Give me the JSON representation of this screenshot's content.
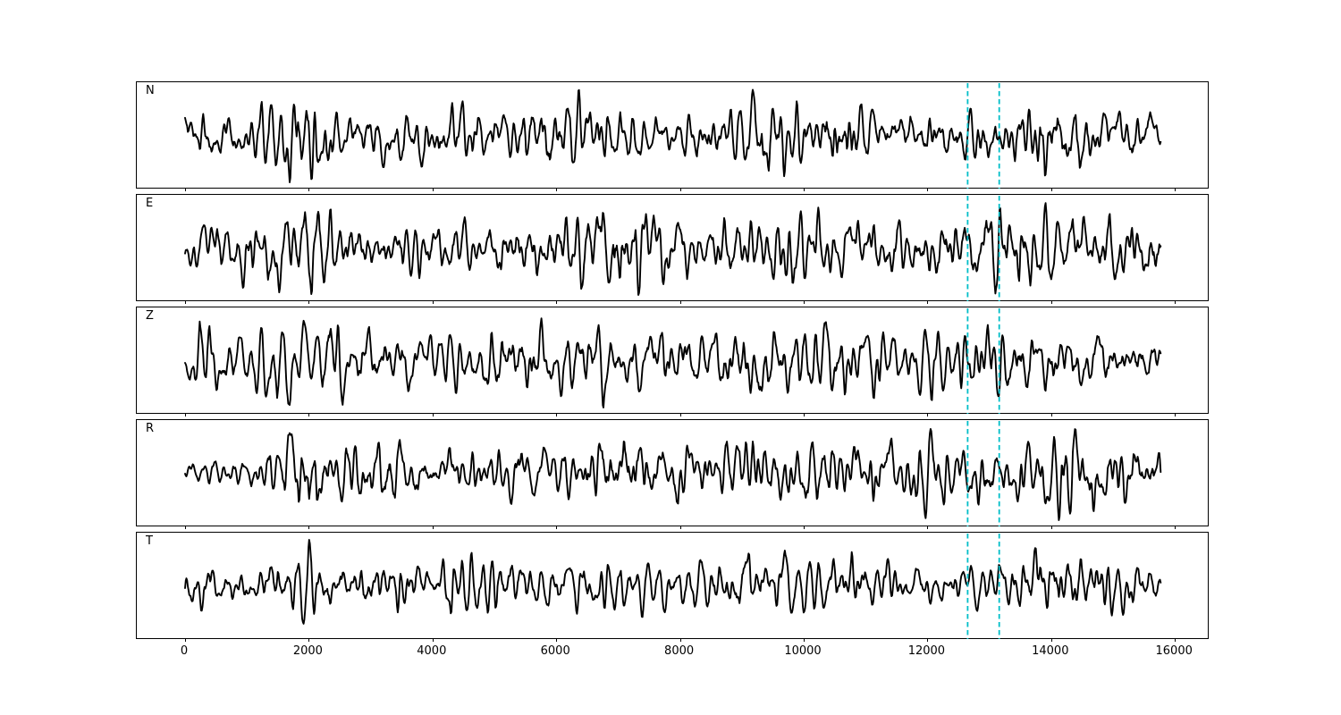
{
  "figure": {
    "background": "#ffffff",
    "trace_color": "#000000",
    "spine_color": "#000000"
  },
  "chart_data": {
    "type": "line",
    "title": "",
    "description": "Five stacked seismogram component traces (N, E, Z, R, T) with two dashed vertical pick lines",
    "xlim": [
      -780,
      16560
    ],
    "x_range_samples": [
      0,
      15770
    ],
    "x_ticks": [
      0,
      2000,
      4000,
      6000,
      8000,
      10000,
      12000,
      14000,
      16000
    ],
    "grid": false,
    "legend_position": "none",
    "trace_color": "#000000",
    "vline_color": "#00bec8",
    "vline_style": "dashed",
    "vlines_x": [
      12650,
      13160
    ],
    "traces": [
      {
        "label": "N",
        "seed": 101,
        "envelope": [
          [
            0,
            0.55
          ],
          [
            900,
            0.5
          ],
          [
            1950,
            1.0
          ],
          [
            2600,
            0.5
          ],
          [
            3600,
            0.55
          ],
          [
            4400,
            0.7
          ],
          [
            5200,
            0.5
          ],
          [
            6100,
            0.85
          ],
          [
            6800,
            0.55
          ],
          [
            7800,
            0.45
          ],
          [
            8800,
            0.55
          ],
          [
            9400,
            1.0
          ],
          [
            10000,
            0.65
          ],
          [
            10450,
            0.85
          ],
          [
            11200,
            0.55
          ],
          [
            12300,
            0.5
          ],
          [
            12900,
            0.65
          ],
          [
            13400,
            0.6
          ],
          [
            14000,
            1.0
          ],
          [
            14600,
            0.7
          ],
          [
            15200,
            0.6
          ],
          [
            15770,
            0.45
          ]
        ]
      },
      {
        "label": "E",
        "seed": 202,
        "envelope": [
          [
            0,
            0.45
          ],
          [
            1100,
            0.5
          ],
          [
            2100,
            0.75
          ],
          [
            2700,
            0.5
          ],
          [
            3800,
            0.55
          ],
          [
            4800,
            0.5
          ],
          [
            6000,
            0.55
          ],
          [
            7050,
            1.0
          ],
          [
            7500,
            0.7
          ],
          [
            8300,
            0.5
          ],
          [
            9300,
            0.55
          ],
          [
            9900,
            0.6
          ],
          [
            10800,
            0.55
          ],
          [
            11800,
            0.55
          ],
          [
            12600,
            0.6
          ],
          [
            13200,
            0.85
          ],
          [
            13900,
            0.7
          ],
          [
            14600,
            0.75
          ],
          [
            15200,
            0.65
          ],
          [
            15770,
            0.6
          ]
        ]
      },
      {
        "label": "Z",
        "seed": 303,
        "envelope": [
          [
            0,
            1.0
          ],
          [
            500,
            0.8
          ],
          [
            1100,
            0.72
          ],
          [
            1900,
            0.95
          ],
          [
            2700,
            0.8
          ],
          [
            3500,
            0.9
          ],
          [
            4300,
            0.68
          ],
          [
            5100,
            0.75
          ],
          [
            6000,
            0.95
          ],
          [
            6900,
            0.72
          ],
          [
            7600,
            0.85
          ],
          [
            8400,
            0.75
          ],
          [
            9100,
            0.9
          ],
          [
            10000,
            0.72
          ],
          [
            10500,
            0.88
          ],
          [
            11400,
            0.68
          ],
          [
            12300,
            0.72
          ],
          [
            13300,
            1.0
          ],
          [
            14000,
            0.85
          ],
          [
            14800,
            0.7
          ],
          [
            15770,
            0.62
          ]
        ]
      },
      {
        "label": "R",
        "seed": 404,
        "envelope": [
          [
            0,
            0.15
          ],
          [
            700,
            0.3
          ],
          [
            1300,
            0.45
          ],
          [
            2000,
            1.0
          ],
          [
            2500,
            0.55
          ],
          [
            3300,
            0.72
          ],
          [
            4100,
            0.5
          ],
          [
            5100,
            0.55
          ],
          [
            6100,
            0.5
          ],
          [
            7100,
            1.0
          ],
          [
            7600,
            0.7
          ],
          [
            8500,
            0.55
          ],
          [
            9500,
            0.7
          ],
          [
            10400,
            0.62
          ],
          [
            11300,
            0.6
          ],
          [
            12200,
            0.58
          ],
          [
            13000,
            0.62
          ],
          [
            13700,
            0.8
          ],
          [
            14400,
            0.75
          ],
          [
            15100,
            0.7
          ],
          [
            15770,
            0.6
          ]
        ]
      },
      {
        "label": "T",
        "seed": 505,
        "envelope": [
          [
            0,
            0.6
          ],
          [
            1000,
            0.55
          ],
          [
            2000,
            0.85
          ],
          [
            2600,
            0.6
          ],
          [
            3000,
            0.8
          ],
          [
            3900,
            0.6
          ],
          [
            5000,
            1.0
          ],
          [
            5600,
            0.6
          ],
          [
            6300,
            0.8
          ],
          [
            7200,
            0.6
          ],
          [
            8200,
            0.55
          ],
          [
            9300,
            0.9
          ],
          [
            10000,
            0.7
          ],
          [
            10500,
            0.8
          ],
          [
            11300,
            0.6
          ],
          [
            12300,
            0.55
          ],
          [
            13000,
            0.6
          ],
          [
            13900,
            1.0
          ],
          [
            14500,
            0.75
          ],
          [
            15300,
            0.65
          ],
          [
            15770,
            0.5
          ]
        ]
      }
    ]
  }
}
